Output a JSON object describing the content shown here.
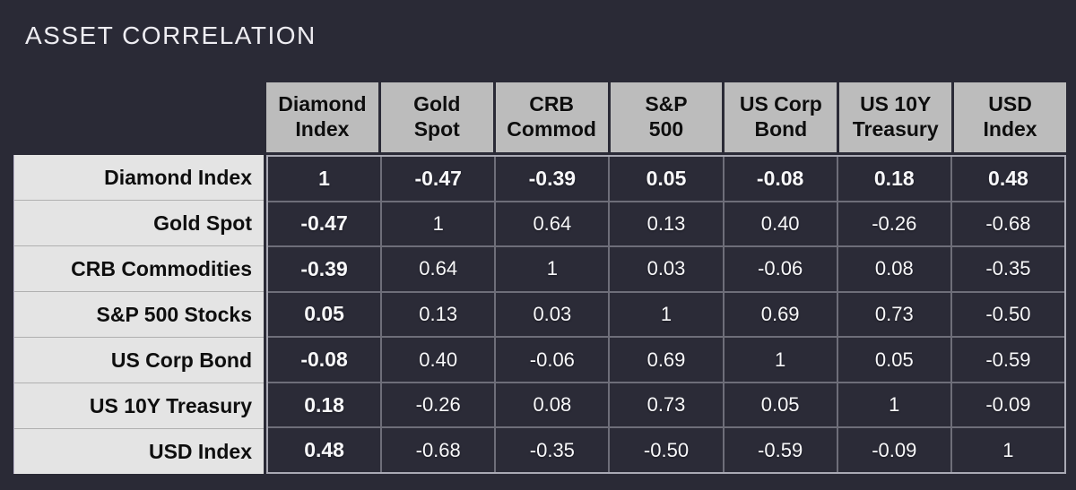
{
  "title": "ASSET CORRELATION",
  "colors": {
    "background": "#2a2a36",
    "column_header_bg": "#bcbcbc",
    "row_header_bg": "#e4e4e4",
    "cell_bg": "#2b2b37",
    "grid_line": "#6e6e79",
    "grid_outer_border": "#a9a9b4",
    "cell_text": "#f8f8fa",
    "header_text": "#0e0e0e"
  },
  "table": {
    "column_headers": [
      "Diamond\nIndex",
      "Gold\nSpot",
      "CRB\nCommod",
      "S&P\n500",
      "US Corp\nBond",
      "US 10Y\nTreasury",
      "USD\nIndex"
    ],
    "row_headers": [
      "Diamond Index",
      "Gold Spot",
      "CRB Commodities",
      "S&P 500 Stocks",
      "US Corp Bond",
      "US 10Y Treasury",
      "USD Index"
    ],
    "values": [
      [
        "1",
        "-0.47",
        "-0.39",
        "0.05",
        "-0.08",
        "0.18",
        "0.48"
      ],
      [
        "-0.47",
        "1",
        "0.64",
        "0.13",
        "0.40",
        "-0.26",
        "-0.68"
      ],
      [
        "-0.39",
        "0.64",
        "1",
        "0.03",
        "-0.06",
        "0.08",
        "-0.35"
      ],
      [
        "0.05",
        "0.13",
        "0.03",
        "1",
        "0.69",
        "0.73",
        "-0.50"
      ],
      [
        "-0.08",
        "0.40",
        "-0.06",
        "0.69",
        "1",
        "0.05",
        "-0.59"
      ],
      [
        "0.18",
        "-0.26",
        "0.08",
        "0.73",
        "0.05",
        "1",
        "-0.09"
      ],
      [
        "0.48",
        "-0.68",
        "-0.35",
        "-0.50",
        "-0.59",
        "-0.09",
        "1"
      ]
    ]
  },
  "chart_data": {
    "type": "table",
    "title": "ASSET CORRELATION",
    "categories": [
      "Diamond Index",
      "Gold Spot",
      "CRB Commodities",
      "S&P 500 Stocks",
      "US Corp Bond",
      "US 10Y Treasury",
      "USD Index"
    ],
    "matrix": [
      [
        1,
        -0.47,
        -0.39,
        0.05,
        -0.08,
        0.18,
        0.48
      ],
      [
        -0.47,
        1,
        0.64,
        0.13,
        0.4,
        -0.26,
        -0.68
      ],
      [
        -0.39,
        0.64,
        1,
        0.03,
        -0.06,
        0.08,
        -0.35
      ],
      [
        0.05,
        0.13,
        0.03,
        1,
        0.69,
        0.73,
        -0.5
      ],
      [
        -0.08,
        0.4,
        -0.06,
        0.69,
        1,
        0.05,
        -0.59
      ],
      [
        0.18,
        -0.26,
        0.08,
        0.73,
        0.05,
        1,
        -0.09
      ],
      [
        0.48,
        -0.68,
        -0.35,
        -0.5,
        -0.59,
        -0.09,
        1
      ]
    ],
    "value_range": [
      -1,
      1
    ],
    "notes": "Correlation matrix; first row and first column values rendered bold"
  }
}
